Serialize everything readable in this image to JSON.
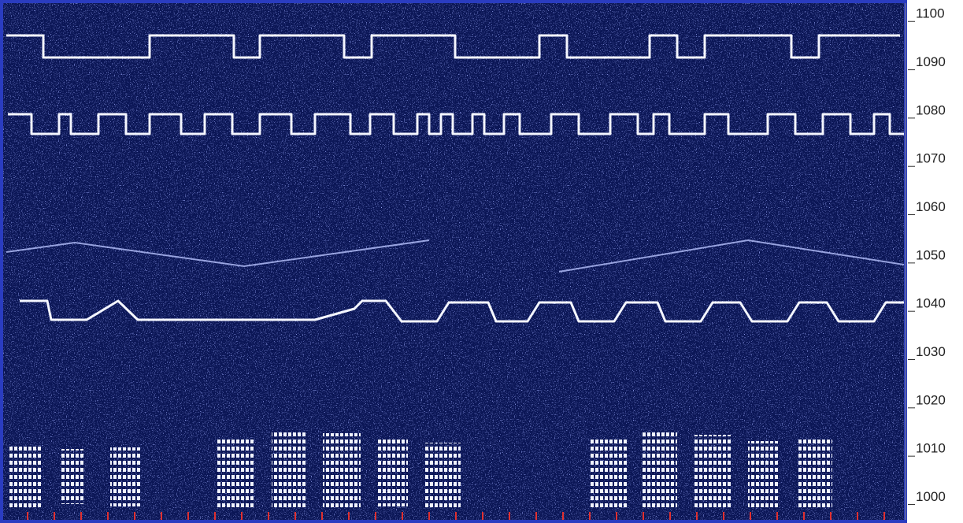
{
  "chart_data": {
    "type": "spectrogram",
    "ylim": [
      996,
      1102
    ],
    "yticks": [
      1000,
      1010,
      1020,
      1030,
      1040,
      1050,
      1060,
      1070,
      1080,
      1090,
      1100
    ]
  }
}
